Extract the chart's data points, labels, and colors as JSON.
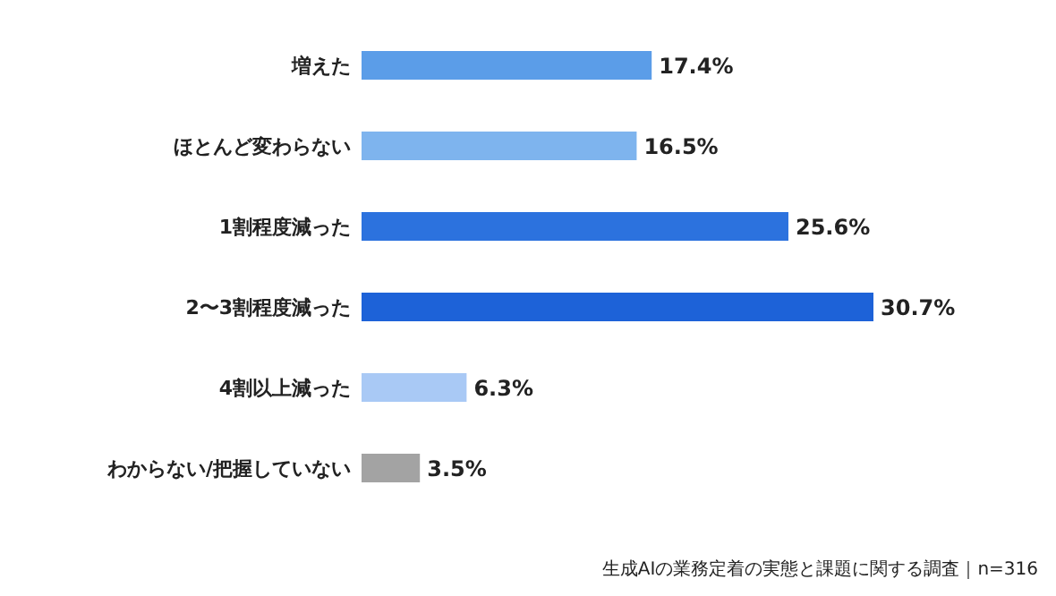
{
  "chart_data": {
    "type": "bar",
    "orientation": "horizontal",
    "categories": [
      "増えた",
      "ほとんど変わらない",
      "1割程度減った",
      "2〜3割程度減った",
      "4割以上減った",
      "わからない/把握していない"
    ],
    "values": [
      17.4,
      16.5,
      25.6,
      30.7,
      6.3,
      3.5
    ],
    "colors": [
      "#5b9de8",
      "#7eb4ee",
      "#2c72de",
      "#1d62d8",
      "#a9c9f5",
      "#a3a3a3"
    ],
    "value_labels": [
      "17.4%",
      "16.5%",
      "25.6%",
      "30.7%",
      "6.3%",
      "3.5%"
    ],
    "annotations": [
      "生成AIの業務定着の実態と課題に関する調査｜n=316"
    ]
  }
}
